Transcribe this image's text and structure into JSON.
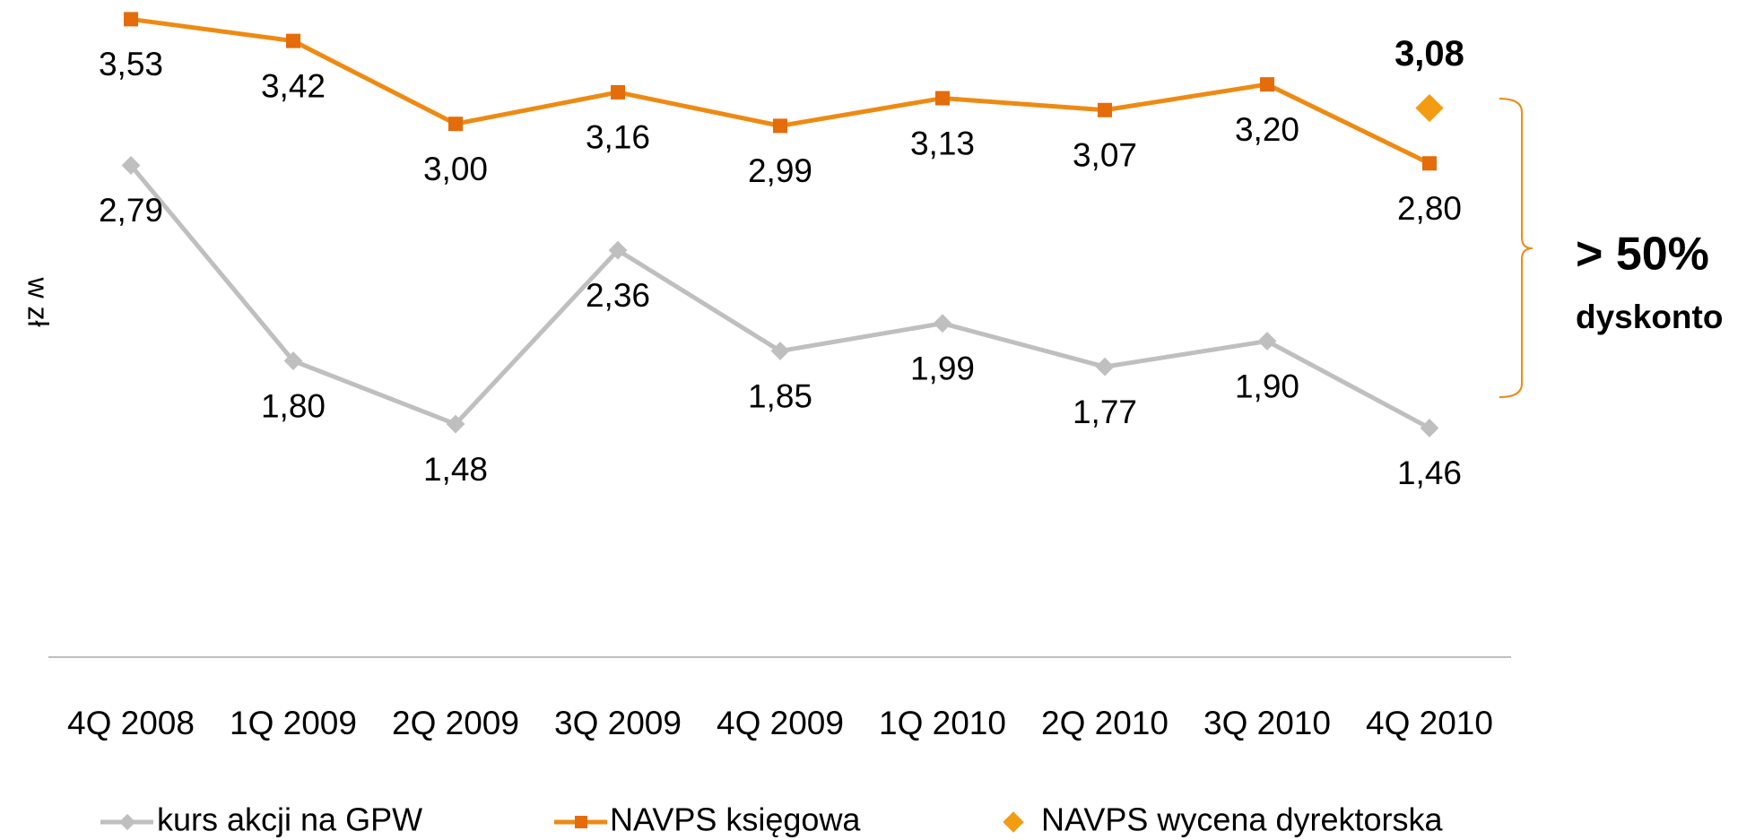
{
  "chart_data": {
    "type": "line",
    "y_label": "w zł",
    "categories": [
      "4Q 2008",
      "1Q 2009",
      "2Q 2009",
      "3Q 2009",
      "4Q 2009",
      "1Q 2010",
      "2Q 2010",
      "3Q 2010",
      "4Q 2010"
    ],
    "series": [
      {
        "name": "kurs akcji na GPW",
        "color": "#bfbfbf",
        "marker": "diamond",
        "values": [
          2.79,
          1.8,
          1.48,
          2.36,
          1.85,
          1.99,
          1.77,
          1.9,
          1.46
        ],
        "value_labels": [
          "2,79",
          "1,80",
          "1,48",
          "2,36",
          "1,85",
          "1,99",
          "1,77",
          "1,90",
          "1,46"
        ]
      },
      {
        "name": "NAVPS księgowa",
        "color": "#ee8a12",
        "marker": "square",
        "values": [
          3.53,
          3.42,
          3.0,
          3.16,
          2.99,
          3.13,
          3.07,
          3.2,
          2.8
        ],
        "value_labels": [
          "3,53",
          "3,42",
          "3,00",
          "3,16",
          "2,99",
          "3,13",
          "3,07",
          "3,20",
          "2,80"
        ]
      },
      {
        "name": "NAVPS wycena dyrektorska",
        "color": "#f39c12",
        "marker": "diamond",
        "line": false,
        "values": [
          null,
          null,
          null,
          null,
          null,
          null,
          null,
          null,
          3.08
        ],
        "value_labels": [
          null,
          null,
          null,
          null,
          null,
          null,
          null,
          null,
          "3,08"
        ]
      }
    ],
    "ylim": [
      0.3,
      3.6
    ],
    "annotation": {
      "title": "> 50%",
      "text": "dyskonto",
      "color": "#ee8a12"
    }
  }
}
